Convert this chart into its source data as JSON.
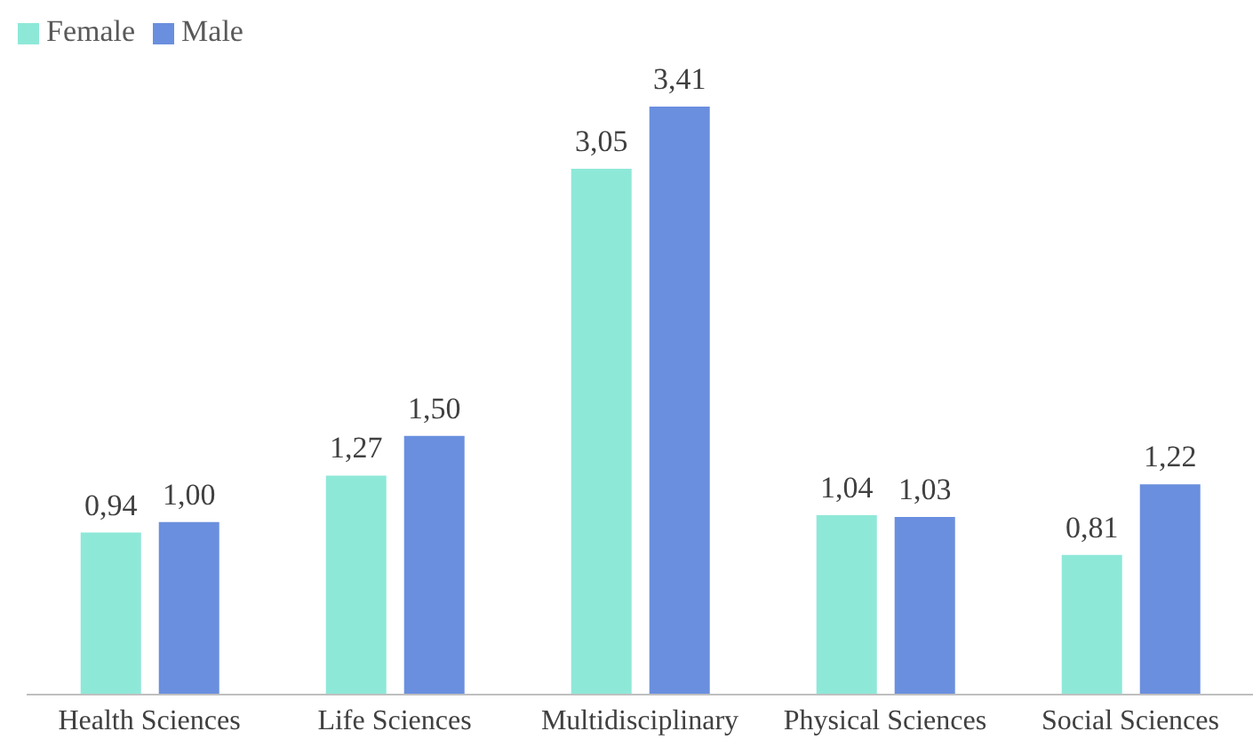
{
  "chart_data": {
    "type": "bar",
    "categories": [
      "Health Sciences",
      "Life Sciences",
      "Multidisciplinary",
      "Physical Sciences",
      "Social Sciences"
    ],
    "series": [
      {
        "name": "Female",
        "color": "#8ee8d8",
        "values": [
          0.94,
          1.27,
          3.05,
          1.04,
          0.81
        ],
        "value_labels": [
          "0,94",
          "1,27",
          "3,05",
          "1,04",
          "0,81"
        ]
      },
      {
        "name": "Male",
        "color": "#6a8fde",
        "values": [
          1.0,
          1.5,
          3.41,
          1.03,
          1.22
        ],
        "value_labels": [
          "1,00",
          "1,50",
          "3,41",
          "1,03",
          "1,22"
        ]
      }
    ],
    "legend": "top left",
    "grid": false
  }
}
